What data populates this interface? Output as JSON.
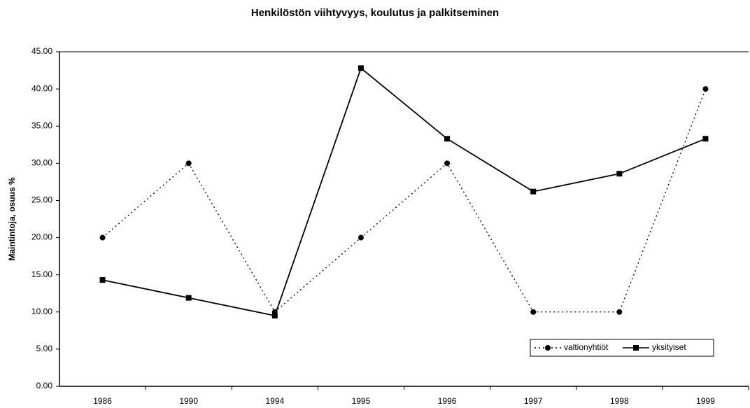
{
  "chart_data": {
    "type": "line",
    "title": "Henkilöstön viihtyvyys, koulutus ja palkitseminen",
    "y_label": "Maintintoja, osuus %",
    "categories": [
      "1986",
      "1990",
      "1994",
      "1995",
      "1996",
      "1997",
      "1998",
      "1999"
    ],
    "series": [
      {
        "name": "valtionyhtiöt",
        "color": "#000000",
        "marker": "circle",
        "line_style": "dotted",
        "values": [
          20,
          30,
          10,
          20,
          30,
          10,
          10,
          40
        ]
      },
      {
        "name": "yksityiset",
        "color": "#000000",
        "marker": "square",
        "line_style": "solid",
        "values": [
          14.3,
          11.9,
          9.5,
          42.8,
          33.3,
          26.2,
          28.6,
          33.3
        ]
      }
    ],
    "ylim": [
      0,
      45
    ],
    "yticks": [
      {
        "value": 0,
        "label": "0.00"
      },
      {
        "value": 5,
        "label": "5.00"
      },
      {
        "value": 10,
        "label": "10.00"
      },
      {
        "value": 15,
        "label": "15.00"
      },
      {
        "value": 20,
        "label": "20.00"
      },
      {
        "value": 25,
        "label": "25.00"
      },
      {
        "value": 30,
        "label": "30.00"
      },
      {
        "value": 35,
        "label": "35.00"
      },
      {
        "value": 40,
        "label": "40.00"
      },
      {
        "value": 45,
        "label": "45.00"
      }
    ],
    "grid": false,
    "legend": "lower right"
  }
}
